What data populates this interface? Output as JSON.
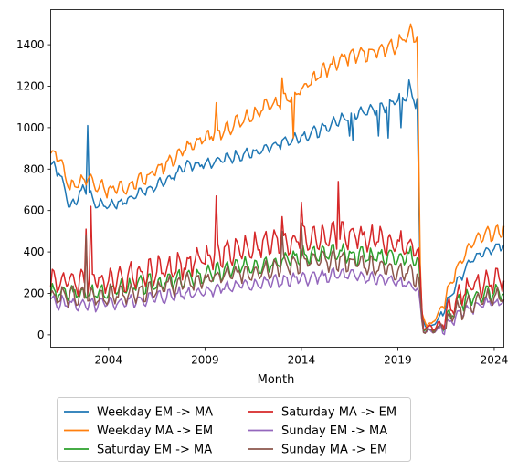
{
  "chart_data": {
    "type": "line",
    "title": "",
    "xlabel": "Month",
    "ylabel": "",
    "x_start": 2001.0,
    "x_end": 2024.5,
    "xlim": [
      2001.0,
      2024.5
    ],
    "ylim": [
      -60,
      1570
    ],
    "x_ticks": [
      2004,
      2009,
      2014,
      2019,
      2024
    ],
    "y_ticks": [
      0,
      200,
      400,
      600,
      800,
      1000,
      1200,
      1400
    ],
    "grid": false,
    "legend_position": "below chart, two columns",
    "series": [
      {
        "name": "Weekday EM -> MA",
        "color": "#1f77b4",
        "knots": [
          [
            2001.0,
            820
          ],
          [
            2001.4,
            790
          ],
          [
            2002.0,
            620
          ],
          [
            2002.6,
            690
          ],
          [
            2002.9,
            700
          ],
          [
            2003.2,
            640
          ],
          [
            2004.0,
            620
          ],
          [
            2005.0,
            650
          ],
          [
            2006.0,
            700
          ],
          [
            2007.0,
            740
          ],
          [
            2008.0,
            810
          ],
          [
            2009.0,
            830
          ],
          [
            2010.0,
            850
          ],
          [
            2011.0,
            870
          ],
          [
            2012.0,
            890
          ],
          [
            2013.0,
            930
          ],
          [
            2014.0,
            950
          ],
          [
            2015.0,
            990
          ],
          [
            2016.0,
            1040
          ],
          [
            2017.0,
            1070
          ],
          [
            2018.0,
            1090
          ],
          [
            2019.0,
            1130
          ],
          [
            2019.7,
            1170
          ],
          [
            2020.0,
            1100
          ],
          [
            2020.2,
            100
          ],
          [
            2020.5,
            30
          ],
          [
            2021.0,
            60
          ],
          [
            2021.5,
            140
          ],
          [
            2022.0,
            240
          ],
          [
            2022.5,
            320
          ],
          [
            2023.0,
            380
          ],
          [
            2023.5,
            400
          ],
          [
            2024.0,
            420
          ],
          [
            2024.5,
            430
          ]
        ],
        "amp": 35,
        "spikes": [
          [
            2002.9,
            1010
          ],
          [
            2016.5,
            960
          ],
          [
            2016.7,
            940
          ],
          [
            2018.0,
            960
          ],
          [
            2018.5,
            950
          ],
          [
            2019.2,
            1000
          ],
          [
            2019.6,
            1230
          ],
          [
            2020.0,
            1140
          ]
        ],
        "seed": 1
      },
      {
        "name": "Weekday MA -> EM",
        "color": "#ff7f0e",
        "knots": [
          [
            2001.0,
            880
          ],
          [
            2001.4,
            870
          ],
          [
            2002.0,
            700
          ],
          [
            2002.6,
            740
          ],
          [
            2003.0,
            780
          ],
          [
            2003.3,
            720
          ],
          [
            2004.0,
            700
          ],
          [
            2005.0,
            720
          ],
          [
            2006.0,
            760
          ],
          [
            2007.0,
            830
          ],
          [
            2008.0,
            900
          ],
          [
            2009.0,
            950
          ],
          [
            2010.0,
            990
          ],
          [
            2011.0,
            1040
          ],
          [
            2012.0,
            1090
          ],
          [
            2013.0,
            1130
          ],
          [
            2014.0,
            1180
          ],
          [
            2015.0,
            1260
          ],
          [
            2016.0,
            1330
          ],
          [
            2017.0,
            1350
          ],
          [
            2018.0,
            1370
          ],
          [
            2019.0,
            1400
          ],
          [
            2019.7,
            1470
          ],
          [
            2020.0,
            1430
          ],
          [
            2020.2,
            120
          ],
          [
            2020.5,
            40
          ],
          [
            2021.0,
            80
          ],
          [
            2021.5,
            180
          ],
          [
            2022.0,
            310
          ],
          [
            2022.5,
            400
          ],
          [
            2023.0,
            460
          ],
          [
            2023.5,
            480
          ],
          [
            2024.0,
            490
          ],
          [
            2024.5,
            510
          ]
        ],
        "amp": 45,
        "spikes": [
          [
            2009.6,
            1120
          ],
          [
            2013.0,
            1240
          ],
          [
            2013.6,
            950
          ],
          [
            2013.9,
            1160
          ],
          [
            2019.7,
            1500
          ],
          [
            2020.0,
            1440
          ]
        ],
        "seed": 2
      },
      {
        "name": "Saturday EM -> MA",
        "color": "#2ca02c",
        "knots": [
          [
            2001.0,
            200
          ],
          [
            2003.0,
            200
          ],
          [
            2005.0,
            230
          ],
          [
            2008.0,
            270
          ],
          [
            2011.0,
            330
          ],
          [
            2014.0,
            380
          ],
          [
            2016.0,
            390
          ],
          [
            2018.0,
            380
          ],
          [
            2019.7,
            380
          ],
          [
            2020.1,
            350
          ],
          [
            2020.3,
            30
          ],
          [
            2020.8,
            20
          ],
          [
            2021.5,
            60
          ],
          [
            2022.0,
            140
          ],
          [
            2023.0,
            190
          ],
          [
            2024.5,
            210
          ]
        ],
        "amp": 55,
        "spikes": [],
        "seed": 3
      },
      {
        "name": "Saturday MA -> EM",
        "color": "#d62728",
        "knots": [
          [
            2001.0,
            260
          ],
          [
            2003.0,
            260
          ],
          [
            2005.0,
            280
          ],
          [
            2008.0,
            340
          ],
          [
            2011.0,
            420
          ],
          [
            2014.0,
            460
          ],
          [
            2016.0,
            480
          ],
          [
            2018.0,
            460
          ],
          [
            2019.7,
            420
          ],
          [
            2020.1,
            400
          ],
          [
            2020.3,
            40
          ],
          [
            2020.8,
            30
          ],
          [
            2021.5,
            80
          ],
          [
            2022.0,
            180
          ],
          [
            2023.0,
            240
          ],
          [
            2024.5,
            260
          ]
        ],
        "amp": 80,
        "spikes": [
          [
            2002.8,
            510
          ],
          [
            2003.1,
            620
          ],
          [
            2009.6,
            670
          ],
          [
            2013.0,
            570
          ],
          [
            2014.0,
            640
          ],
          [
            2015.9,
            740
          ],
          [
            2020.0,
            410
          ]
        ],
        "seed": 4
      },
      {
        "name": "Sunday EM -> MA",
        "color": "#9467bd",
        "knots": [
          [
            2001.0,
            160
          ],
          [
            2003.0,
            140
          ],
          [
            2005.0,
            160
          ],
          [
            2008.0,
            200
          ],
          [
            2011.0,
            240
          ],
          [
            2014.0,
            270
          ],
          [
            2016.0,
            290
          ],
          [
            2018.0,
            270
          ],
          [
            2019.7,
            240
          ],
          [
            2020.1,
            200
          ],
          [
            2020.3,
            20
          ],
          [
            2020.8,
            15
          ],
          [
            2021.5,
            40
          ],
          [
            2022.0,
            90
          ],
          [
            2023.0,
            140
          ],
          [
            2024.5,
            160
          ]
        ],
        "amp": 40,
        "spikes": [],
        "seed": 5
      },
      {
        "name": "Sunday MA -> EM",
        "color": "#8c564b",
        "knots": [
          [
            2001.0,
            190
          ],
          [
            2003.0,
            180
          ],
          [
            2005.0,
            200
          ],
          [
            2008.0,
            250
          ],
          [
            2011.0,
            300
          ],
          [
            2014.0,
            350
          ],
          [
            2016.0,
            360
          ],
          [
            2018.0,
            330
          ],
          [
            2019.7,
            300
          ],
          [
            2020.1,
            260
          ],
          [
            2020.3,
            20
          ],
          [
            2020.8,
            20
          ],
          [
            2021.5,
            50
          ],
          [
            2022.0,
            110
          ],
          [
            2023.0,
            160
          ],
          [
            2024.5,
            190
          ]
        ],
        "amp": 60,
        "spikes": [
          [
            2002.8,
            480
          ],
          [
            2013.0,
            500
          ],
          [
            2014.0,
            540
          ]
        ],
        "seed": 6
      }
    ]
  }
}
